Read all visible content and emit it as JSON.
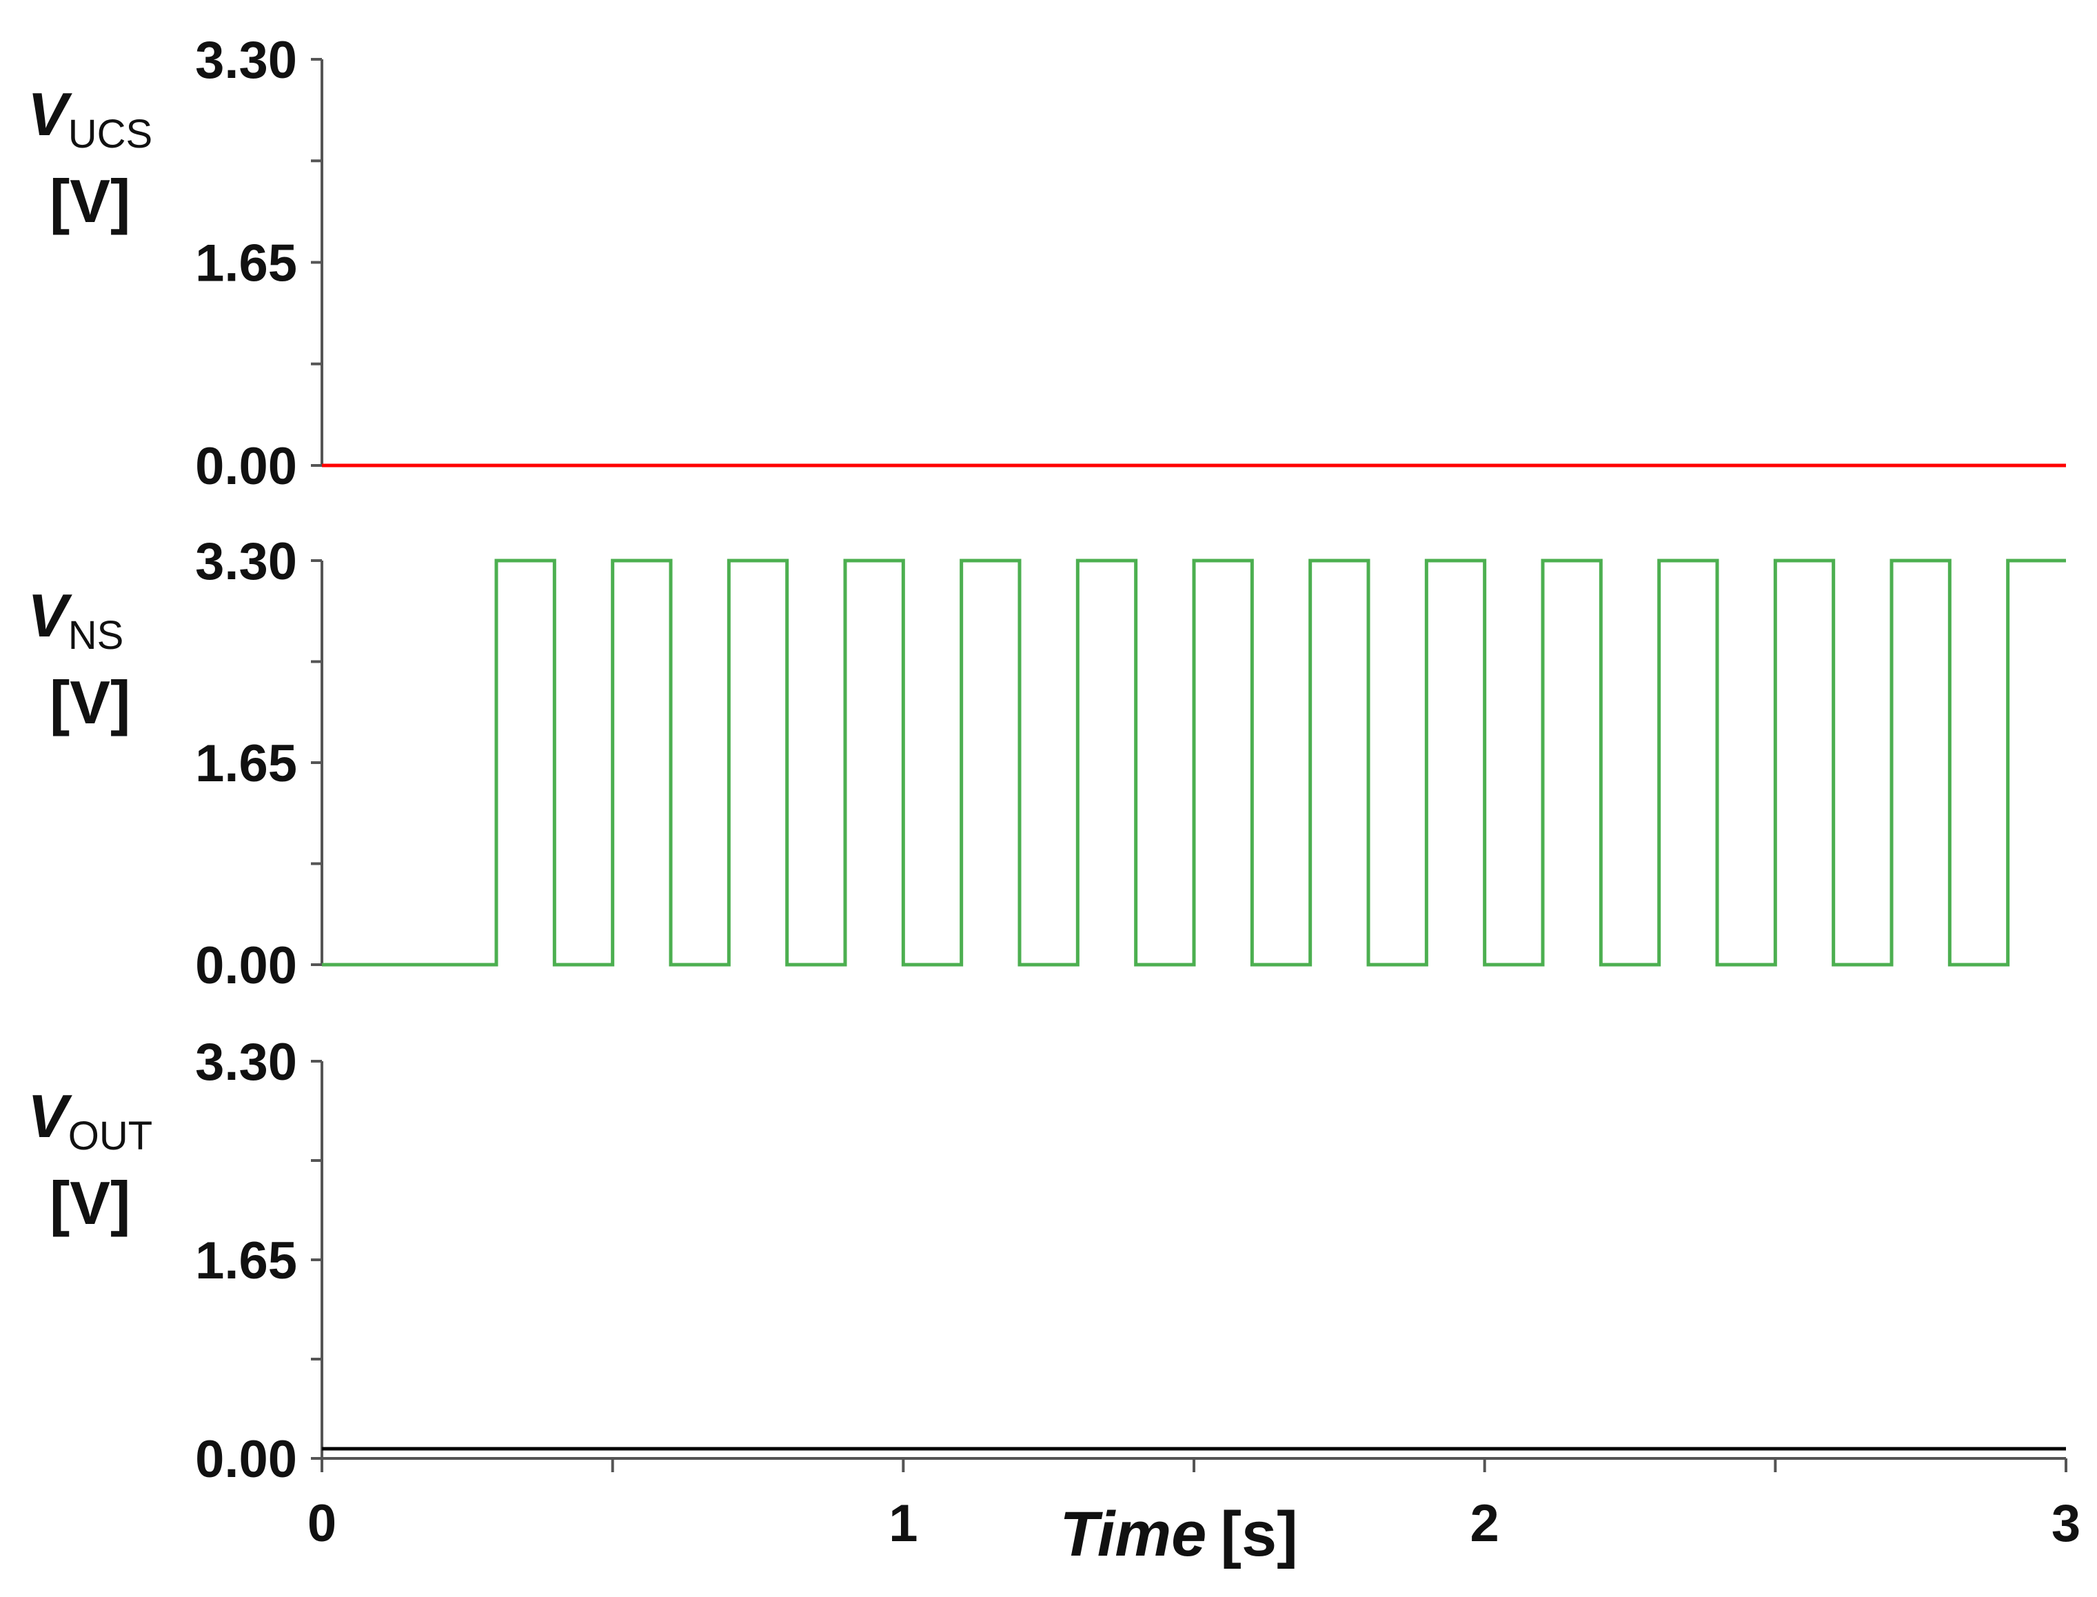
{
  "chart_data": [
    {
      "type": "line",
      "ylabel": {
        "symbol": "V",
        "subscript": "UCS",
        "unit": "[V]"
      },
      "ylim": [
        0,
        3.3
      ],
      "yticks": [
        {
          "value": 0,
          "label": "0.00"
        },
        {
          "value": 1.65,
          "label": "1.65"
        },
        {
          "value": 3.3,
          "label": "3.30"
        }
      ],
      "yminorticks": [
        0.825,
        2.475
      ],
      "xlim": [
        0,
        3
      ],
      "x": [
        0,
        3
      ],
      "series": [
        {
          "color": "#ff0000",
          "values": [
            0,
            0
          ]
        }
      ]
    },
    {
      "type": "line",
      "ylabel": {
        "symbol": "V",
        "subscript": "NS",
        "unit": "[V]"
      },
      "ylim": [
        0,
        3.3
      ],
      "yticks": [
        {
          "value": 0,
          "label": "0.00"
        },
        {
          "value": 1.65,
          "label": "1.65"
        },
        {
          "value": 3.3,
          "label": "3.30"
        }
      ],
      "yminorticks": [
        0.825,
        2.475
      ],
      "xlim": [
        0,
        3
      ],
      "x": [
        0,
        0.3,
        0.3,
        0.4,
        0.4,
        0.5,
        0.5,
        0.6,
        0.6,
        0.7,
        0.7,
        0.8,
        0.8,
        0.9,
        0.9,
        1.0,
        1.0,
        1.1,
        1.1,
        1.2,
        1.2,
        1.3,
        1.3,
        1.4,
        1.4,
        1.5,
        1.5,
        1.6,
        1.6,
        1.7,
        1.7,
        1.8,
        1.8,
        1.9,
        1.9,
        2.0,
        2.0,
        2.1,
        2.1,
        2.2,
        2.2,
        2.3,
        2.3,
        2.4,
        2.4,
        2.5,
        2.5,
        2.6,
        2.6,
        2.7,
        2.7,
        2.8,
        2.8,
        2.9,
        2.9,
        3
      ],
      "series": [
        {
          "color": "#4caf50",
          "values": [
            0,
            0,
            3.3,
            3.3,
            0,
            0,
            3.3,
            3.3,
            0,
            0,
            3.3,
            3.3,
            0,
            0,
            3.3,
            3.3,
            0,
            0,
            3.3,
            3.3,
            0,
            0,
            3.3,
            3.3,
            0,
            0,
            3.3,
            3.3,
            0,
            0,
            3.3,
            3.3,
            0,
            0,
            3.3,
            3.3,
            0,
            0,
            3.3,
            3.3,
            0,
            0,
            3.3,
            3.3,
            0,
            0,
            3.3,
            3.3,
            0,
            0,
            3.3,
            3.3,
            0,
            0,
            3.3,
            3.3
          ]
        }
      ]
    },
    {
      "type": "line",
      "ylabel": {
        "symbol": "V",
        "subscript": "OUT",
        "unit": "[V]"
      },
      "ylim": [
        0,
        3.3
      ],
      "yticks": [
        {
          "value": 0,
          "label": "0.00"
        },
        {
          "value": 1.65,
          "label": "1.65"
        },
        {
          "value": 3.3,
          "label": "3.30"
        }
      ],
      "yminorticks": [
        0.825,
        2.475
      ],
      "xlim": [
        0,
        3
      ],
      "xticks": [
        0,
        1,
        2,
        3
      ],
      "xminorticks": [
        0.5,
        1.5,
        2.5
      ],
      "xlabel_var": "Time",
      "xlabel_unit": "[s]",
      "x": [
        0,
        3
      ],
      "series": [
        {
          "color": "#000000",
          "values": [
            0.08,
            0.08
          ]
        }
      ]
    }
  ]
}
